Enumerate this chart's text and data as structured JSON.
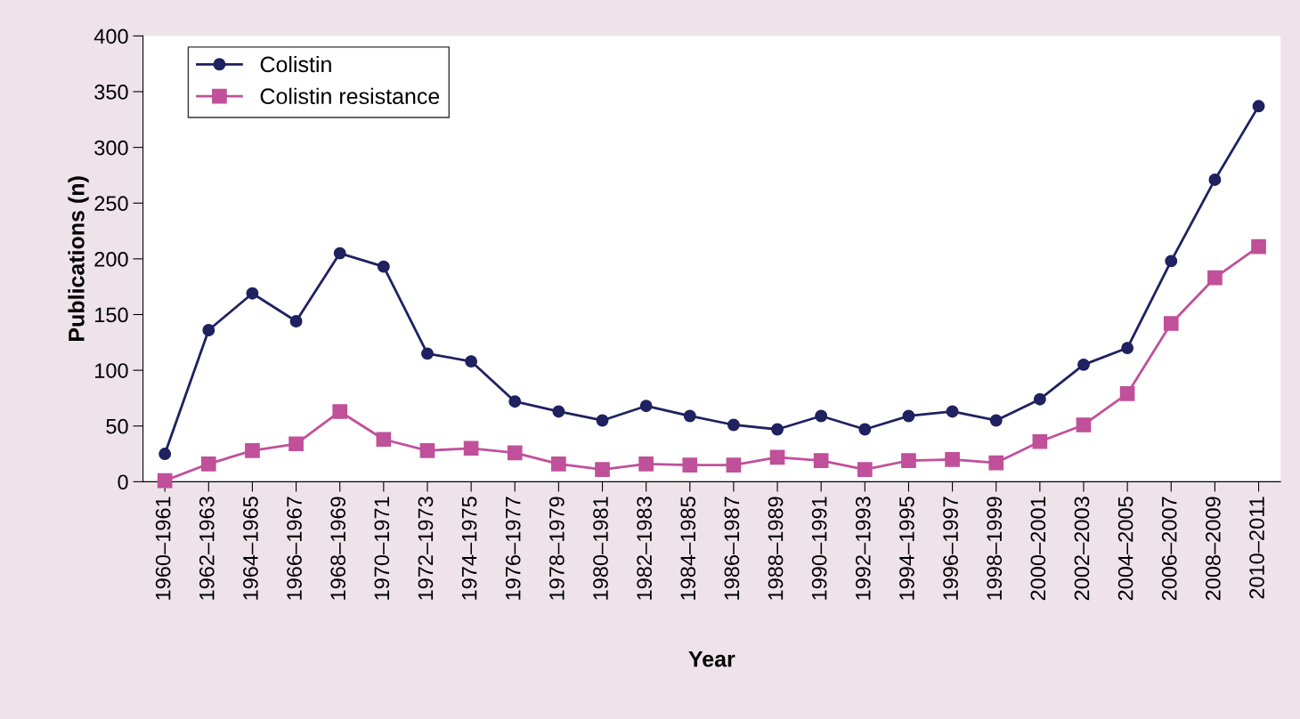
{
  "chart_data": {
    "type": "line",
    "xlabel": "Year",
    "ylabel": "Publications (n)",
    "categories": [
      "1960–1961",
      "1962–1963",
      "1964–1965",
      "1966–1967",
      "1968–1969",
      "1970–1971",
      "1972–1973",
      "1974–1975",
      "1976–1977",
      "1978–1979",
      "1980–1981",
      "1982–1983",
      "1984–1985",
      "1986–1987",
      "1988–1989",
      "1990–1991",
      "1992–1993",
      "1994–1995",
      "1996–1997",
      "1998–1999",
      "2000–2001",
      "2002–2003",
      "2004–2005",
      "2006–2007",
      "2008–2009",
      "2010–2011"
    ],
    "series": [
      {
        "name": "Colistin",
        "color": "#1f2160",
        "marker": "circle",
        "values": [
          25,
          136,
          169,
          144,
          205,
          193,
          115,
          108,
          72,
          63,
          55,
          68,
          59,
          51,
          47,
          59,
          47,
          59,
          63,
          55,
          74,
          105,
          120,
          198,
          271,
          337
        ]
      },
      {
        "name": "Colistin resistance",
        "color": "#c0509a",
        "marker": "square",
        "values": [
          1,
          16,
          28,
          34,
          63,
          38,
          28,
          30,
          26,
          16,
          11,
          16,
          15,
          15,
          22,
          19,
          11,
          19,
          20,
          17,
          36,
          51,
          79,
          142,
          183,
          211
        ]
      }
    ],
    "ylim": [
      0,
      400
    ],
    "yticks": [
      0,
      50,
      100,
      150,
      200,
      250,
      300,
      350,
      400
    ],
    "grid": false,
    "legend": "top left"
  }
}
